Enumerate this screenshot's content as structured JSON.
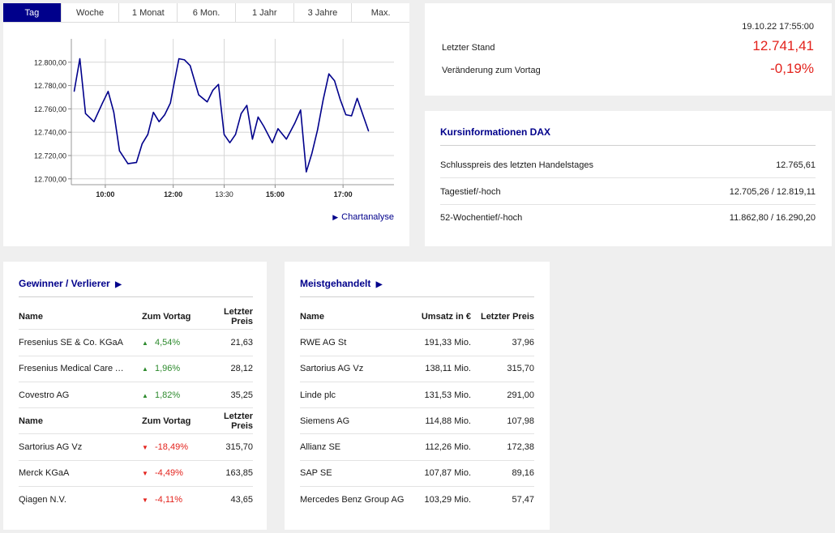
{
  "colors": {
    "accent": "#00008b",
    "up": "#2e8b2e",
    "down": "#e3221c",
    "line": "#00008b"
  },
  "chart": {
    "tabs": [
      "Tag",
      "Woche",
      "1 Monat",
      "6 Mon.",
      "1 Jahr",
      "3 Jahre",
      "Max."
    ],
    "active_tab": 0,
    "link_label": "Chartanalyse",
    "link_icon": "play-triangle-icon"
  },
  "chart_data": {
    "type": "line",
    "title": "",
    "xlabel": "",
    "ylabel": "",
    "xlim": [
      "09:00",
      "18:30"
    ],
    "ylim": [
      12695,
      12820
    ],
    "grid": true,
    "y_ticks": [
      "12.700,00",
      "12.720,00",
      "12.740,00",
      "12.760,00",
      "12.780,00",
      "12.800,00"
    ],
    "x_ticks": [
      {
        "time": "10:00",
        "label": "10:00",
        "bold": true
      },
      {
        "time": "12:00",
        "label": "12:00",
        "bold": true
      },
      {
        "time": "13:30",
        "label": "13:30",
        "bold": false
      },
      {
        "time": "15:00",
        "label": "15:00",
        "bold": true
      },
      {
        "time": "17:00",
        "label": "17:00",
        "bold": true
      }
    ],
    "series": [
      {
        "x": [
          "09:05",
          "09:15",
          "09:25",
          "09:40",
          "09:55",
          "10:05",
          "10:15",
          "10:25",
          "10:40",
          "10:55",
          "11:05",
          "11:15",
          "11:25",
          "11:35",
          "11:45",
          "11:55",
          "12:00",
          "12:10",
          "12:20",
          "12:30",
          "12:45",
          "13:00",
          "13:10",
          "13:20",
          "13:30",
          "13:40",
          "13:50",
          "14:00",
          "14:10",
          "14:20",
          "14:30",
          "14:40",
          "14:55",
          "15:05",
          "15:20",
          "15:35",
          "15:45",
          "15:55",
          "16:05",
          "16:15",
          "16:25",
          "16:35",
          "16:45",
          "16:55",
          "17:05",
          "17:15",
          "17:25",
          "17:35",
          "17:45"
        ],
        "values": [
          12775,
          12803,
          12756,
          12749,
          12765,
          12775,
          12757,
          12724,
          12713,
          12714,
          12730,
          12738,
          12757,
          12749,
          12755,
          12765,
          12778,
          12803,
          12802,
          12797,
          12772,
          12766,
          12776,
          12781,
          12738,
          12731,
          12738,
          12756,
          12763,
          12734,
          12753,
          12745,
          12731,
          12743,
          12734,
          12748,
          12759,
          12706,
          12722,
          12742,
          12768,
          12790,
          12784,
          12768,
          12755,
          12754,
          12769,
          12755,
          12741
        ]
      }
    ]
  },
  "quote": {
    "datetime": "19.10.22 17:55:00",
    "last_label": "Letzter Stand",
    "last_value": "12.741,41",
    "change_label": "Veränderung zum Vortag",
    "change_value": "-0,19%"
  },
  "info": {
    "title": "Kursinformationen DAX",
    "rows": [
      {
        "label": "Schlusspreis des letzten Handelstages",
        "value": "12.765,61"
      },
      {
        "label": "Tagestief/-hoch",
        "value": "12.705,26 / 12.819,11"
      },
      {
        "label": "52-Wochentief/-hoch",
        "value": "11.862,80 / 16.290,20"
      }
    ]
  },
  "gainers": {
    "title": "Gewinner / Verlierer",
    "title_icon": "play-triangle-icon",
    "headers": [
      "Name",
      "Zum Vortag",
      "Letzter Preis"
    ],
    "winners": [
      {
        "name": "Fresenius SE & Co. KGaA",
        "change": "4,54%",
        "price": "21,63"
      },
      {
        "name": "Fresenius Medical Care AG & Co. KGaA",
        "change": "1,96%",
        "price": "28,12"
      },
      {
        "name": "Covestro AG",
        "change": "1,82%",
        "price": "35,25"
      }
    ],
    "losers": [
      {
        "name": "Sartorius AG Vz",
        "change": "-18,49%",
        "price": "315,70"
      },
      {
        "name": "Merck KGaA",
        "change": "-4,49%",
        "price": "163,85"
      },
      {
        "name": "Qiagen N.V.",
        "change": "-4,11%",
        "price": "43,65"
      }
    ],
    "up_icon": "triangle-up-icon",
    "down_icon": "triangle-down-icon"
  },
  "most_traded": {
    "title": "Meistgehandelt",
    "title_icon": "play-triangle-icon",
    "headers": [
      "Name",
      "Umsatz in €",
      "Letzter Preis"
    ],
    "rows": [
      {
        "name": "RWE AG St",
        "volume": "191,33 Mio.",
        "price": "37,96"
      },
      {
        "name": "Sartorius AG Vz",
        "volume": "138,11 Mio.",
        "price": "315,70"
      },
      {
        "name": "Linde plc",
        "volume": "131,53 Mio.",
        "price": "291,00"
      },
      {
        "name": "Siemens AG",
        "volume": "114,88 Mio.",
        "price": "107,98"
      },
      {
        "name": "Allianz SE",
        "volume": "112,26 Mio.",
        "price": "172,38"
      },
      {
        "name": "SAP SE",
        "volume": "107,87 Mio.",
        "price": "89,16"
      },
      {
        "name": "Mercedes Benz Group AG",
        "volume": "103,29 Mio.",
        "price": "57,47"
      }
    ]
  }
}
